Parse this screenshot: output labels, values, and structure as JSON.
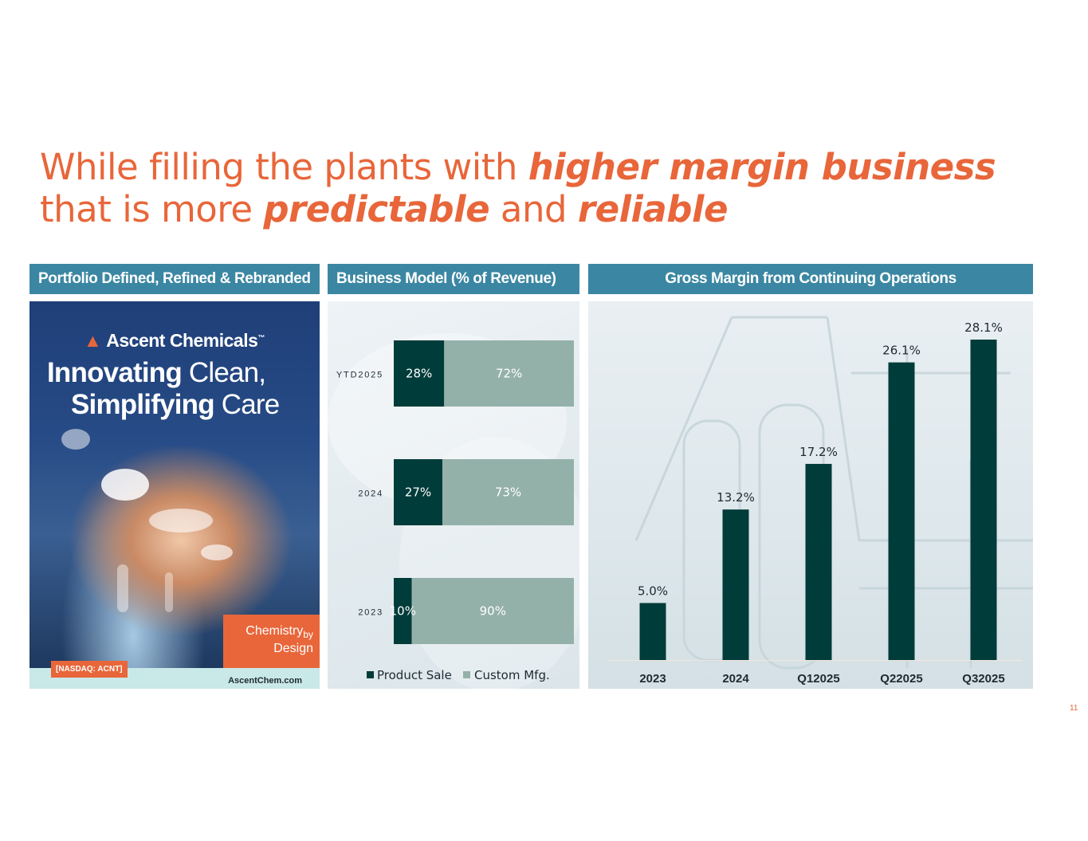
{
  "title": {
    "line1_normal": "While filling the plants with ",
    "line1_bold": "higher margin business",
    "line2_normal1": "that is more ",
    "line2_bold1": "predictable",
    "line2_normal2": " and ",
    "line2_bold2": "reliable"
  },
  "colors": {
    "orange_accent": "#e8663a",
    "header_blue": "#3b87a3",
    "dark_teal": "#003c3a",
    "sage": "#94b1a9"
  },
  "panels": {
    "portfolio": {
      "header": "Portfolio Defined, Refined & Rebranded",
      "logo_icon": "ascent-triangle-logo-icon",
      "brand": "Ascent Chemicals",
      "brand_mark": "™",
      "headline_bold1": "Innovating",
      "headline_light1": " Clean,",
      "headline_bold2": "Simplifying",
      "headline_light2": " Care",
      "tagline_line1": "Chemistry",
      "tagline_by": "by",
      "tagline_line2": "Design",
      "ticker": "[NASDAQ: ACNT]",
      "url": "AscentChem.com"
    },
    "business_model": {
      "header": "Business Model (% of Revenue)"
    },
    "gross_margin": {
      "header": "Gross Margin from Continuing Operations"
    }
  },
  "chart_data": [
    {
      "type": "bar",
      "orientation": "horizontal",
      "stacked": true,
      "categories": [
        "YTD2025",
        "2024",
        "2023"
      ],
      "series": [
        {
          "name": "Product Sale",
          "values": [
            28,
            27,
            10
          ],
          "labels": [
            "28%",
            "27%",
            "10%"
          ],
          "color": "#003c3a"
        },
        {
          "name": "Custom Mfg.",
          "values": [
            72,
            73,
            90
          ],
          "labels": [
            "72%",
            "73%",
            "90%"
          ],
          "color": "#94b1a9"
        }
      ],
      "xlim": [
        0,
        100
      ],
      "legend": "bottom",
      "grid": false
    },
    {
      "type": "bar",
      "categories": [
        "2023",
        "2024",
        "Q12025",
        "Q22025",
        "Q32025"
      ],
      "values": [
        5.0,
        13.2,
        17.2,
        26.1,
        28.1
      ],
      "labels": [
        "5.0%",
        "13.2%",
        "17.2%",
        "26.1%",
        "28.1%"
      ],
      "color": "#003c3a",
      "ylim": [
        0,
        28.1
      ],
      "grid": false
    }
  ],
  "page_number": "11"
}
